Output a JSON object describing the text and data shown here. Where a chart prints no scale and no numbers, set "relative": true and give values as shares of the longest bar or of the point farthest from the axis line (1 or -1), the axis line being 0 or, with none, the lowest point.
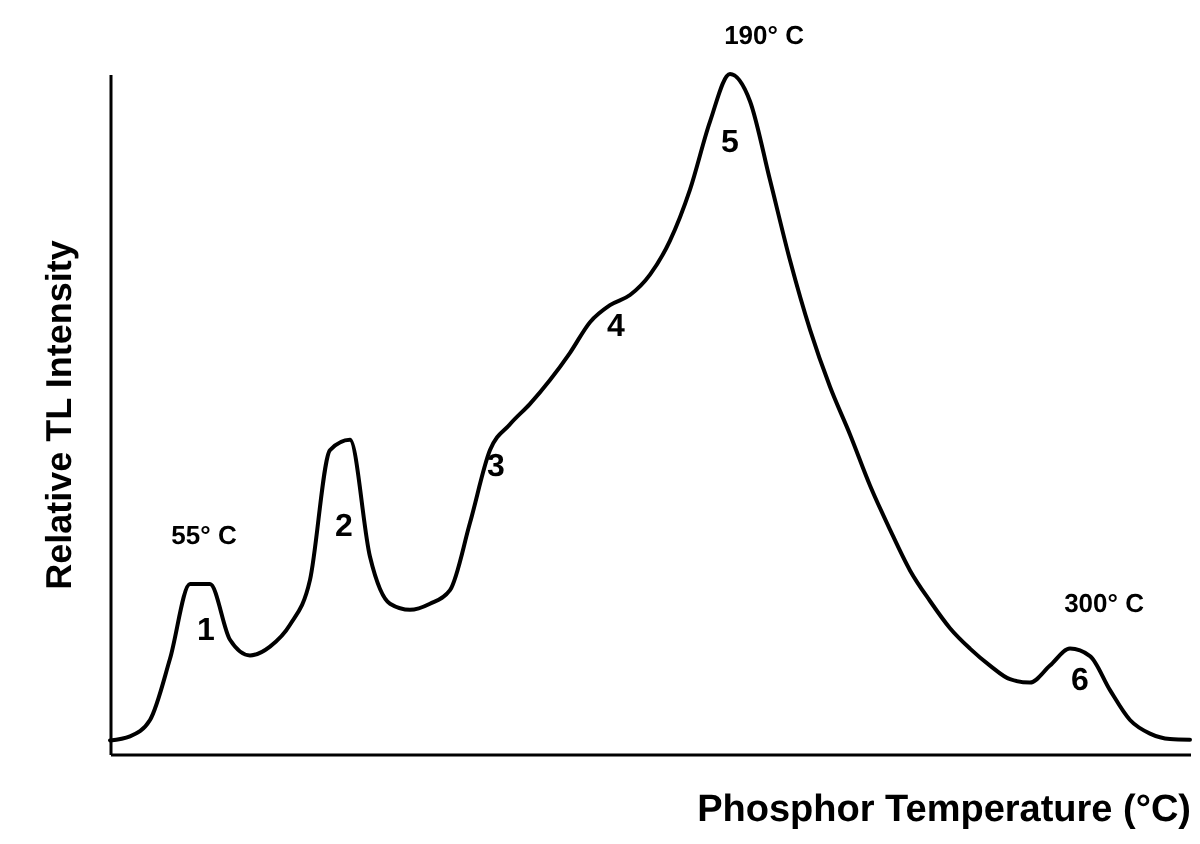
{
  "chart_data": {
    "type": "line",
    "xlabel": "Phosphor Temperature (°C)",
    "ylabel": "Relative TL Intensity",
    "relative": true,
    "color": "#000000",
    "categories": [
      null,
      null,
      null,
      null,
      null,
      null,
      null,
      null,
      null,
      null,
      null,
      null,
      null,
      null,
      null,
      null,
      null,
      null,
      null,
      null,
      null,
      null,
      null,
      null,
      null,
      null,
      null,
      null,
      null,
      null,
      null,
      null,
      null,
      null,
      null,
      null,
      null,
      null,
      null,
      null,
      null,
      null,
      null,
      null,
      null,
      null,
      null,
      null,
      null,
      null,
      null,
      null,
      null,
      null,
      null
    ],
    "values": [
      0.02,
      0.026,
      0.05,
      0.14,
      0.25,
      0.25,
      0.168,
      0.145,
      0.158,
      0.19,
      0.256,
      0.447,
      0.462,
      0.29,
      0.221,
      0.212,
      0.221,
      0.241,
      0.34,
      0.447,
      0.485,
      0.515,
      0.55,
      0.59,
      0.635,
      0.66,
      0.675,
      0.705,
      0.755,
      0.83,
      0.93,
      1,
      0.96,
      0.844,
      0.726,
      0.624,
      0.54,
      0.47,
      0.395,
      0.33,
      0.27,
      0.225,
      0.185,
      0.155,
      0.13,
      0.11,
      0.105,
      0.13,
      0.155,
      0.144,
      0.094,
      0.05,
      0.03,
      0.022,
      0.021
    ],
    "annotations": [
      "55° C",
      "1",
      "2",
      "3",
      "4",
      "5",
      "190° C",
      "300° C",
      "6"
    ]
  }
}
